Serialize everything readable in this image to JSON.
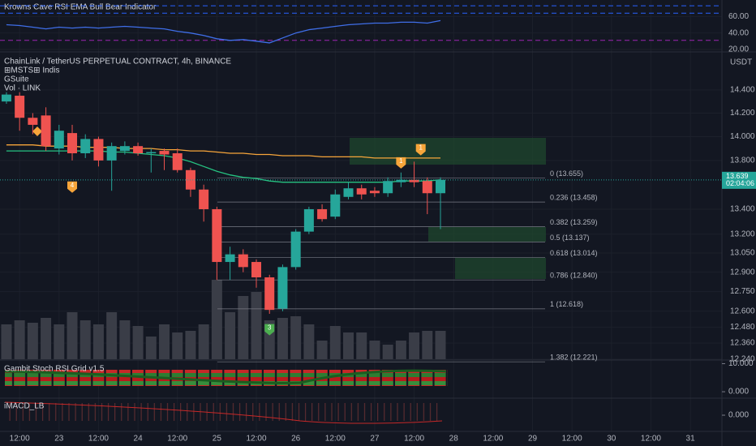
{
  "chart_data": [
    {
      "type": "candlestick",
      "title": "ChainLink / TetherUS PERPETUAL CONTRACT, 4h, BINANCE",
      "indicators": [
        "⊞MSTS⊞ Indis",
        "GSuite",
        "Vol · LINK"
      ],
      "axis_unit": "USDT",
      "yscale": "log",
      "ylim": [
        12.24,
        14.72
      ],
      "yticks": [
        {
          "value": 14.4,
          "label": "14.400"
        },
        {
          "value": 14.2,
          "label": "14.200"
        },
        {
          "value": 14.0,
          "label": "14.000"
        },
        {
          "value": 13.8,
          "label": "13.800"
        },
        {
          "value": 13.4,
          "label": "13.400"
        },
        {
          "value": 13.2,
          "label": "13.200"
        },
        {
          "value": 13.05,
          "label": "13.050"
        },
        {
          "value": 12.9,
          "label": "12.900"
        },
        {
          "value": 12.75,
          "label": "12.750"
        },
        {
          "value": 12.6,
          "label": "12.600"
        },
        {
          "value": 12.48,
          "label": "12.480"
        },
        {
          "value": 12.36,
          "label": "12.360"
        },
        {
          "value": 12.24,
          "label": "12.240"
        }
      ],
      "xlim": [
        -0.49,
        54.4
      ],
      "xticks": [
        {
          "value": 1,
          "label": "12:00"
        },
        {
          "value": 4,
          "label": "23"
        },
        {
          "value": 7,
          "label": "12:00"
        },
        {
          "value": 10,
          "label": "24"
        },
        {
          "value": 13,
          "label": "12:00"
        },
        {
          "value": 16,
          "label": "25"
        },
        {
          "value": 19,
          "label": "12:00"
        },
        {
          "value": 22,
          "label": "26"
        },
        {
          "value": 25,
          "label": "12:00"
        },
        {
          "value": 28,
          "label": "27"
        },
        {
          "value": 31,
          "label": "12:00"
        },
        {
          "value": 34,
          "label": "28"
        },
        {
          "value": 37,
          "label": "12:00"
        },
        {
          "value": 40,
          "label": "29"
        },
        {
          "value": 43,
          "label": "12:00"
        },
        {
          "value": 46,
          "label": "30"
        },
        {
          "value": 49,
          "label": "12:00"
        },
        {
          "value": 52,
          "label": "31"
        }
      ],
      "up_color": "#26a69a",
      "down_color": "#ef5350",
      "open": [
        14.3,
        14.35,
        14.16,
        14.18,
        13.9,
        14.03,
        13.86,
        13.98,
        13.8,
        13.88,
        13.92,
        13.86,
        13.88,
        13.86,
        13.72,
        13.56,
        13.4,
        12.98,
        13.04,
        12.98,
        12.86,
        12.62,
        12.94,
        13.22,
        13.4,
        13.34,
        13.5,
        13.57,
        13.55,
        13.53,
        13.62,
        13.64,
        13.63,
        13.53
      ],
      "high": [
        14.38,
        14.38,
        14.2,
        14.25,
        14.1,
        14.1,
        14.02,
        14.0,
        13.95,
        13.96,
        13.95,
        13.9,
        13.9,
        13.9,
        13.74,
        13.6,
        13.42,
        13.1,
        13.08,
        13.0,
        12.88,
        12.96,
        13.24,
        13.42,
        13.44,
        13.56,
        13.62,
        13.6,
        13.58,
        13.66,
        13.7,
        13.79,
        13.66,
        13.66
      ],
      "low": [
        14.28,
        14.05,
        14.02,
        13.88,
        13.85,
        13.8,
        13.82,
        13.75,
        13.55,
        13.85,
        13.84,
        13.7,
        13.72,
        13.7,
        13.5,
        13.3,
        12.84,
        12.84,
        12.9,
        12.78,
        12.58,
        12.6,
        12.92,
        13.2,
        13.3,
        13.32,
        13.48,
        13.48,
        13.5,
        13.5,
        13.58,
        13.58,
        13.36,
        13.24
      ],
      "close": [
        14.36,
        14.16,
        14.1,
        13.92,
        14.05,
        13.86,
        13.98,
        13.8,
        13.92,
        13.92,
        13.86,
        13.87,
        13.85,
        13.72,
        13.56,
        13.4,
        12.98,
        13.04,
        12.94,
        12.86,
        12.61,
        12.94,
        13.22,
        13.4,
        13.32,
        13.52,
        13.57,
        13.52,
        13.53,
        13.63,
        13.64,
        13.62,
        13.53,
        13.64
      ],
      "volume": [
        43,
        48,
        45,
        51,
        43,
        58,
        48,
        43,
        58,
        48,
        41,
        28,
        43,
        33,
        35,
        43,
        98,
        58,
        78,
        83,
        48,
        51,
        53,
        43,
        23,
        41,
        33,
        33,
        23,
        18,
        23,
        33,
        35,
        35
      ],
      "series": [
        {
          "color": "#f7a53a",
          "values": [
            13.93,
            13.93,
            13.93,
            13.92,
            13.92,
            13.92,
            13.91,
            13.91,
            13.91,
            13.9,
            13.9,
            13.9,
            13.89,
            13.89,
            13.88,
            13.88,
            13.87,
            13.86,
            13.86,
            13.85,
            13.85,
            13.84,
            13.84,
            13.84,
            13.83,
            13.83,
            13.83,
            13.83,
            13.82,
            13.82,
            13.82,
            13.82,
            13.82,
            13.82
          ]
        },
        {
          "color": "#26c281",
          "values": [
            13.88,
            13.88,
            13.88,
            13.88,
            13.88,
            13.88,
            13.88,
            13.88,
            13.87,
            13.87,
            13.86,
            13.85,
            13.84,
            13.82,
            13.79,
            13.75,
            13.71,
            13.68,
            13.66,
            13.65,
            13.63,
            13.62,
            13.62,
            13.62,
            13.62,
            13.62,
            13.62,
            13.62,
            13.62,
            13.62,
            13.63,
            13.63,
            13.63,
            13.64
          ]
        }
      ],
      "fib_levels": [
        {
          "label": "0 (13.655)",
          "value": 13.655
        },
        {
          "label": "0.236 (13.458)",
          "value": 13.458
        },
        {
          "label": "0.382 (13.259)",
          "value": 13.259
        },
        {
          "label": "0.5 (13.137)",
          "value": 13.137
        },
        {
          "label": "0.618 (13.014)",
          "value": 13.014
        },
        {
          "label": "0.786 (12.840)",
          "value": 12.84
        },
        {
          "label": "1 (12.618)",
          "value": 12.618
        },
        {
          "label": "1.382 (12.221)",
          "value": 12.221
        }
      ],
      "markers": [
        {
          "x": 5,
          "y": 13.58,
          "text": "4",
          "color": "#f7a53a"
        },
        {
          "x": 30,
          "y": 13.78,
          "text": "1",
          "color": "#f7a53a"
        },
        {
          "x": 31.5,
          "y": 13.89,
          "text": "1",
          "color": "#f7a53a"
        },
        {
          "x": 20,
          "y": 12.46,
          "text": "3",
          "color": "#4caf50"
        }
      ],
      "last_price": 13.639,
      "countdown": "02:04:06"
    },
    {
      "type": "line",
      "title": "Krowns Cave RSI EMA Bull Bear Indicator",
      "ylim": [
        19,
        80
      ],
      "yticks": [
        {
          "value": 60,
          "label": "60.00"
        },
        {
          "value": 40,
          "label": "40.00"
        },
        {
          "value": 20,
          "label": "20.00"
        }
      ],
      "levels": [
        {
          "value": 73,
          "color": "#2962ff"
        },
        {
          "value": 64,
          "color": "#2962ff"
        },
        {
          "value": 31,
          "color": "#9c27b0"
        }
      ],
      "series": [
        {
          "color": "#3f6ee8",
          "values": [
            50,
            49,
            47,
            45,
            47,
            46,
            47,
            46,
            47,
            48,
            47,
            46,
            45,
            42,
            40,
            37,
            33,
            31,
            32,
            30,
            28,
            34,
            40,
            44,
            46,
            48,
            50,
            51,
            52,
            52,
            53,
            53,
            52,
            55
          ]
        }
      ]
    },
    {
      "type": "indicator",
      "title": "Gambit Stoch RSI Grid v1.5",
      "ylim": [
        -2,
        11
      ],
      "yticks": [
        {
          "value": 10,
          "label": "10.000"
        },
        {
          "value": 0,
          "label": "0.000"
        }
      ]
    },
    {
      "type": "indicator",
      "title": "iMACD_LB",
      "ylim": [
        -1,
        1
      ],
      "yticks": [
        {
          "value": 0,
          "label": "0.000"
        }
      ]
    }
  ]
}
